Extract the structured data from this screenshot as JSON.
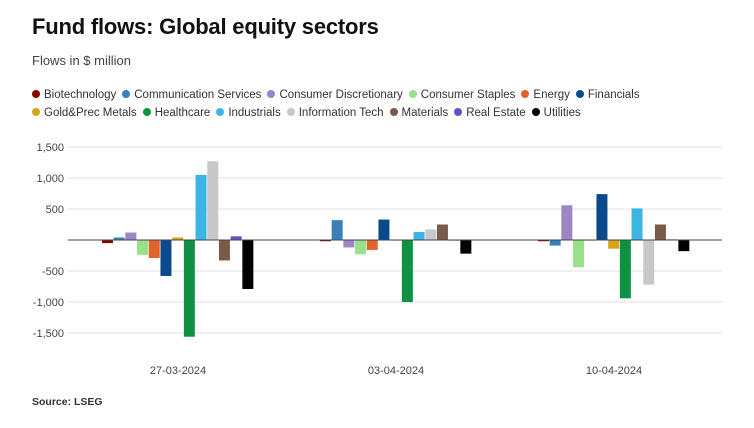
{
  "title": "Fund flows: Global equity sectors",
  "subtitle": "Flows in $ million",
  "source": "Source: LSEG",
  "chart_data": {
    "type": "bar",
    "title": "Fund flows: Global equity sectors",
    "subtitle": "Flows in $ million",
    "xlabel": "",
    "ylabel": "Flows in $ million",
    "ylim": [
      -1700,
      1500
    ],
    "yticks": [
      1500,
      1000,
      500,
      0,
      -500,
      -1000,
      -1500
    ],
    "ytick_labels": [
      "1,500",
      "1,000",
      "500",
      "",
      "-500",
      "-1,000",
      "-1,500"
    ],
    "grid": true,
    "legend_position": "top",
    "categories": [
      "27-03-2024",
      "03-04-2024",
      "10-04-2024"
    ],
    "series": [
      {
        "name": "Biotechnology",
        "color": "#8b0000",
        "values": [
          -50,
          -20,
          -20
        ]
      },
      {
        "name": "Communication Services",
        "color": "#3a7fb8",
        "values": [
          40,
          320,
          -90
        ]
      },
      {
        "name": "Consumer Discretionary",
        "color": "#9b86c5",
        "values": [
          120,
          -120,
          560
        ]
      },
      {
        "name": "Consumer Staples",
        "color": "#98e08a",
        "values": [
          -240,
          -230,
          -440
        ]
      },
      {
        "name": "Energy",
        "color": "#e0642a",
        "values": [
          -290,
          -160,
          -10
        ]
      },
      {
        "name": "Financials",
        "color": "#0a4a8c",
        "values": [
          -580,
          330,
          740
        ]
      },
      {
        "name": "Gold&Prec Metals",
        "color": "#d4a419",
        "values": [
          40,
          -10,
          -140
        ]
      },
      {
        "name": "Healthcare",
        "color": "#0e9142",
        "values": [
          -1560,
          -1000,
          -940
        ]
      },
      {
        "name": "Industrials",
        "color": "#3ab5e6",
        "values": [
          1050,
          130,
          510
        ]
      },
      {
        "name": "Information Tech",
        "color": "#c8c8c8",
        "values": [
          1270,
          170,
          -720
        ]
      },
      {
        "name": "Materials",
        "color": "#7a5a48",
        "values": [
          -330,
          250,
          250
        ]
      },
      {
        "name": "Real Estate",
        "color": "#6a4fc0",
        "values": [
          60,
          -10,
          10
        ]
      },
      {
        "name": "Utilities",
        "color": "#000000",
        "values": [
          -790,
          -220,
          -180
        ]
      }
    ]
  }
}
